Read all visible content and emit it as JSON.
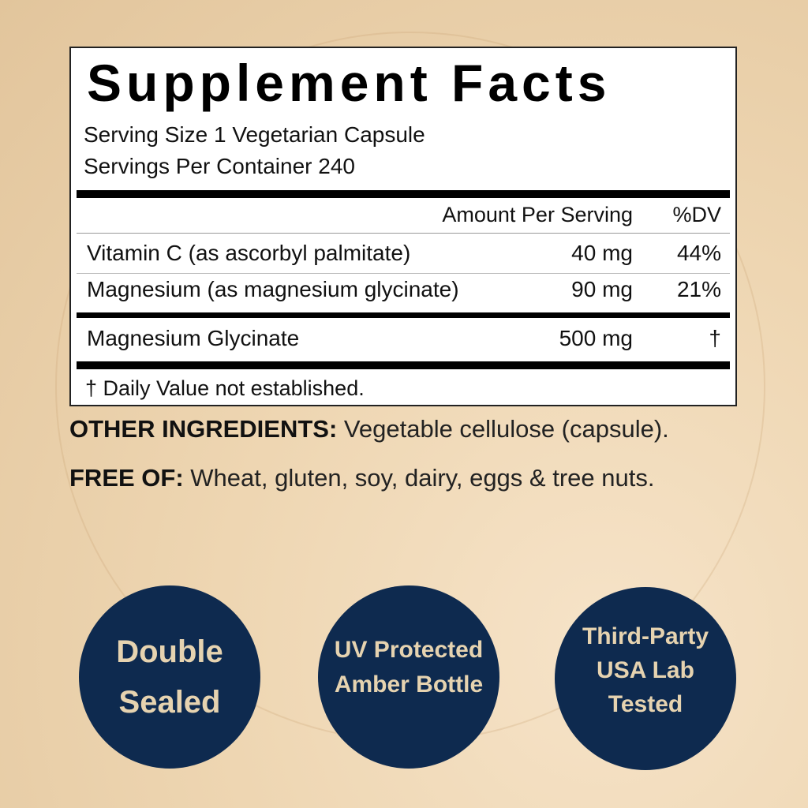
{
  "panel": {
    "title": "Supplement Facts",
    "serving_size": "Serving Size 1 Vegetarian Capsule",
    "servings_per_container": "Servings Per Container 240",
    "header": {
      "amount": "Amount Per Serving",
      "dv": "%DV"
    },
    "rows": [
      {
        "name": "Vitamin C (as ascorbyl palmitate)",
        "amount": "40 mg",
        "dv": "44%"
      },
      {
        "name": "Magnesium (as magnesium glycinate)",
        "amount": "90 mg",
        "dv": "21%"
      },
      {
        "name": "Magnesium Glycinate",
        "amount": "500 mg",
        "dv": "†"
      }
    ],
    "footnote": "† Daily Value not established."
  },
  "other": {
    "label": "OTHER INGREDIENTS:",
    "value": " Vegetable cellulose (capsule)."
  },
  "free": {
    "label": "FREE OF:",
    "value": " Wheat, gluten, soy, dairy, eggs & tree nuts."
  },
  "badges": [
    {
      "lines": [
        "Double",
        "Sealed"
      ]
    },
    {
      "lines": [
        "UV Protected",
        "Amber Bottle"
      ]
    },
    {
      "lines": [
        "Third-Party",
        "USA Lab",
        "Tested"
      ]
    }
  ],
  "colors": {
    "badge_bg": "#0e2a4f",
    "badge_text": "#e6d3b0"
  }
}
